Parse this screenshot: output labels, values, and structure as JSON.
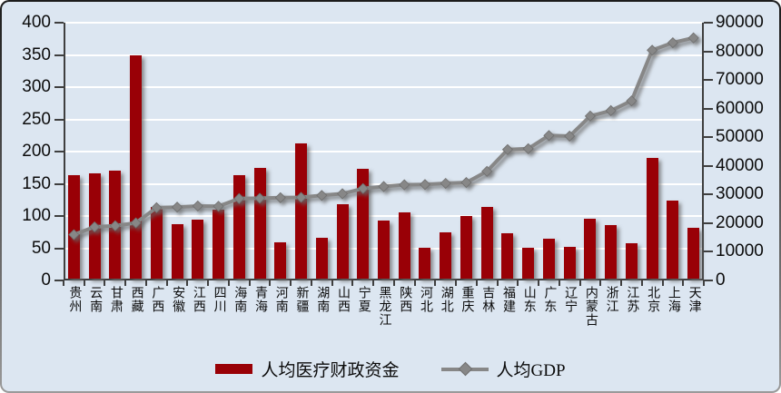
{
  "chart_data": {
    "type": "bar+line combo",
    "title": "",
    "categories": [
      "贵州",
      "云南",
      "甘肃",
      "西藏",
      "广西",
      "安徽",
      "江西",
      "四川",
      "海南",
      "青海",
      "河南",
      "新疆",
      "湖南",
      "山西",
      "宁夏",
      "黑龙江",
      "陕西",
      "河北",
      "湖北",
      "重庆",
      "吉林",
      "福建",
      "山东",
      "广东",
      "辽宁",
      "内蒙古",
      "浙江",
      "江苏",
      "北京",
      "上海",
      "天津"
    ],
    "series": [
      {
        "name": "人均医疗财政资金",
        "type": "bar",
        "axis": "left",
        "color": "#990006",
        "values": [
          160,
          163,
          168,
          346,
          111,
          85,
          92,
          107,
          160,
          172,
          57,
          210,
          63,
          115,
          170,
          90,
          103,
          48,
          72,
          97,
          111,
          70,
          48,
          62,
          50,
          93,
          83,
          55,
          188,
          121,
          79
        ]
      },
      {
        "name": "人均GDP",
        "type": "line",
        "axis": "right",
        "color": "#878787",
        "marker": "diamond",
        "values": [
          16000,
          18700,
          19100,
          20100,
          25400,
          25600,
          26000,
          25900,
          28600,
          28700,
          28900,
          29000,
          29700,
          30300,
          32100,
          32800,
          33400,
          33500,
          33900,
          34200,
          38100,
          45700,
          46000,
          50600,
          50400,
          57400,
          59300,
          62700,
          80400,
          83000,
          84700
        ]
      }
    ],
    "left_axis": {
      "min": 0,
      "max": 400,
      "step": 50,
      "tick_labels": [
        "0",
        "50",
        "100",
        "150",
        "200",
        "250",
        "300",
        "350",
        "400"
      ]
    },
    "right_axis": {
      "min": 0,
      "max": 90000,
      "step": 10000,
      "tick_labels": [
        "0",
        "10000",
        "20000",
        "30000",
        "40000",
        "50000",
        "60000",
        "70000",
        "80000",
        "90000"
      ]
    },
    "grid": true,
    "gridline_color": "#ffffff",
    "legend_position": "bottom",
    "background_color": "#DCE6F1",
    "axis_line_color": "#3F3F3F"
  },
  "legend": {
    "bar_label": "人均医疗财政资金",
    "line_label": "人均GDP"
  }
}
